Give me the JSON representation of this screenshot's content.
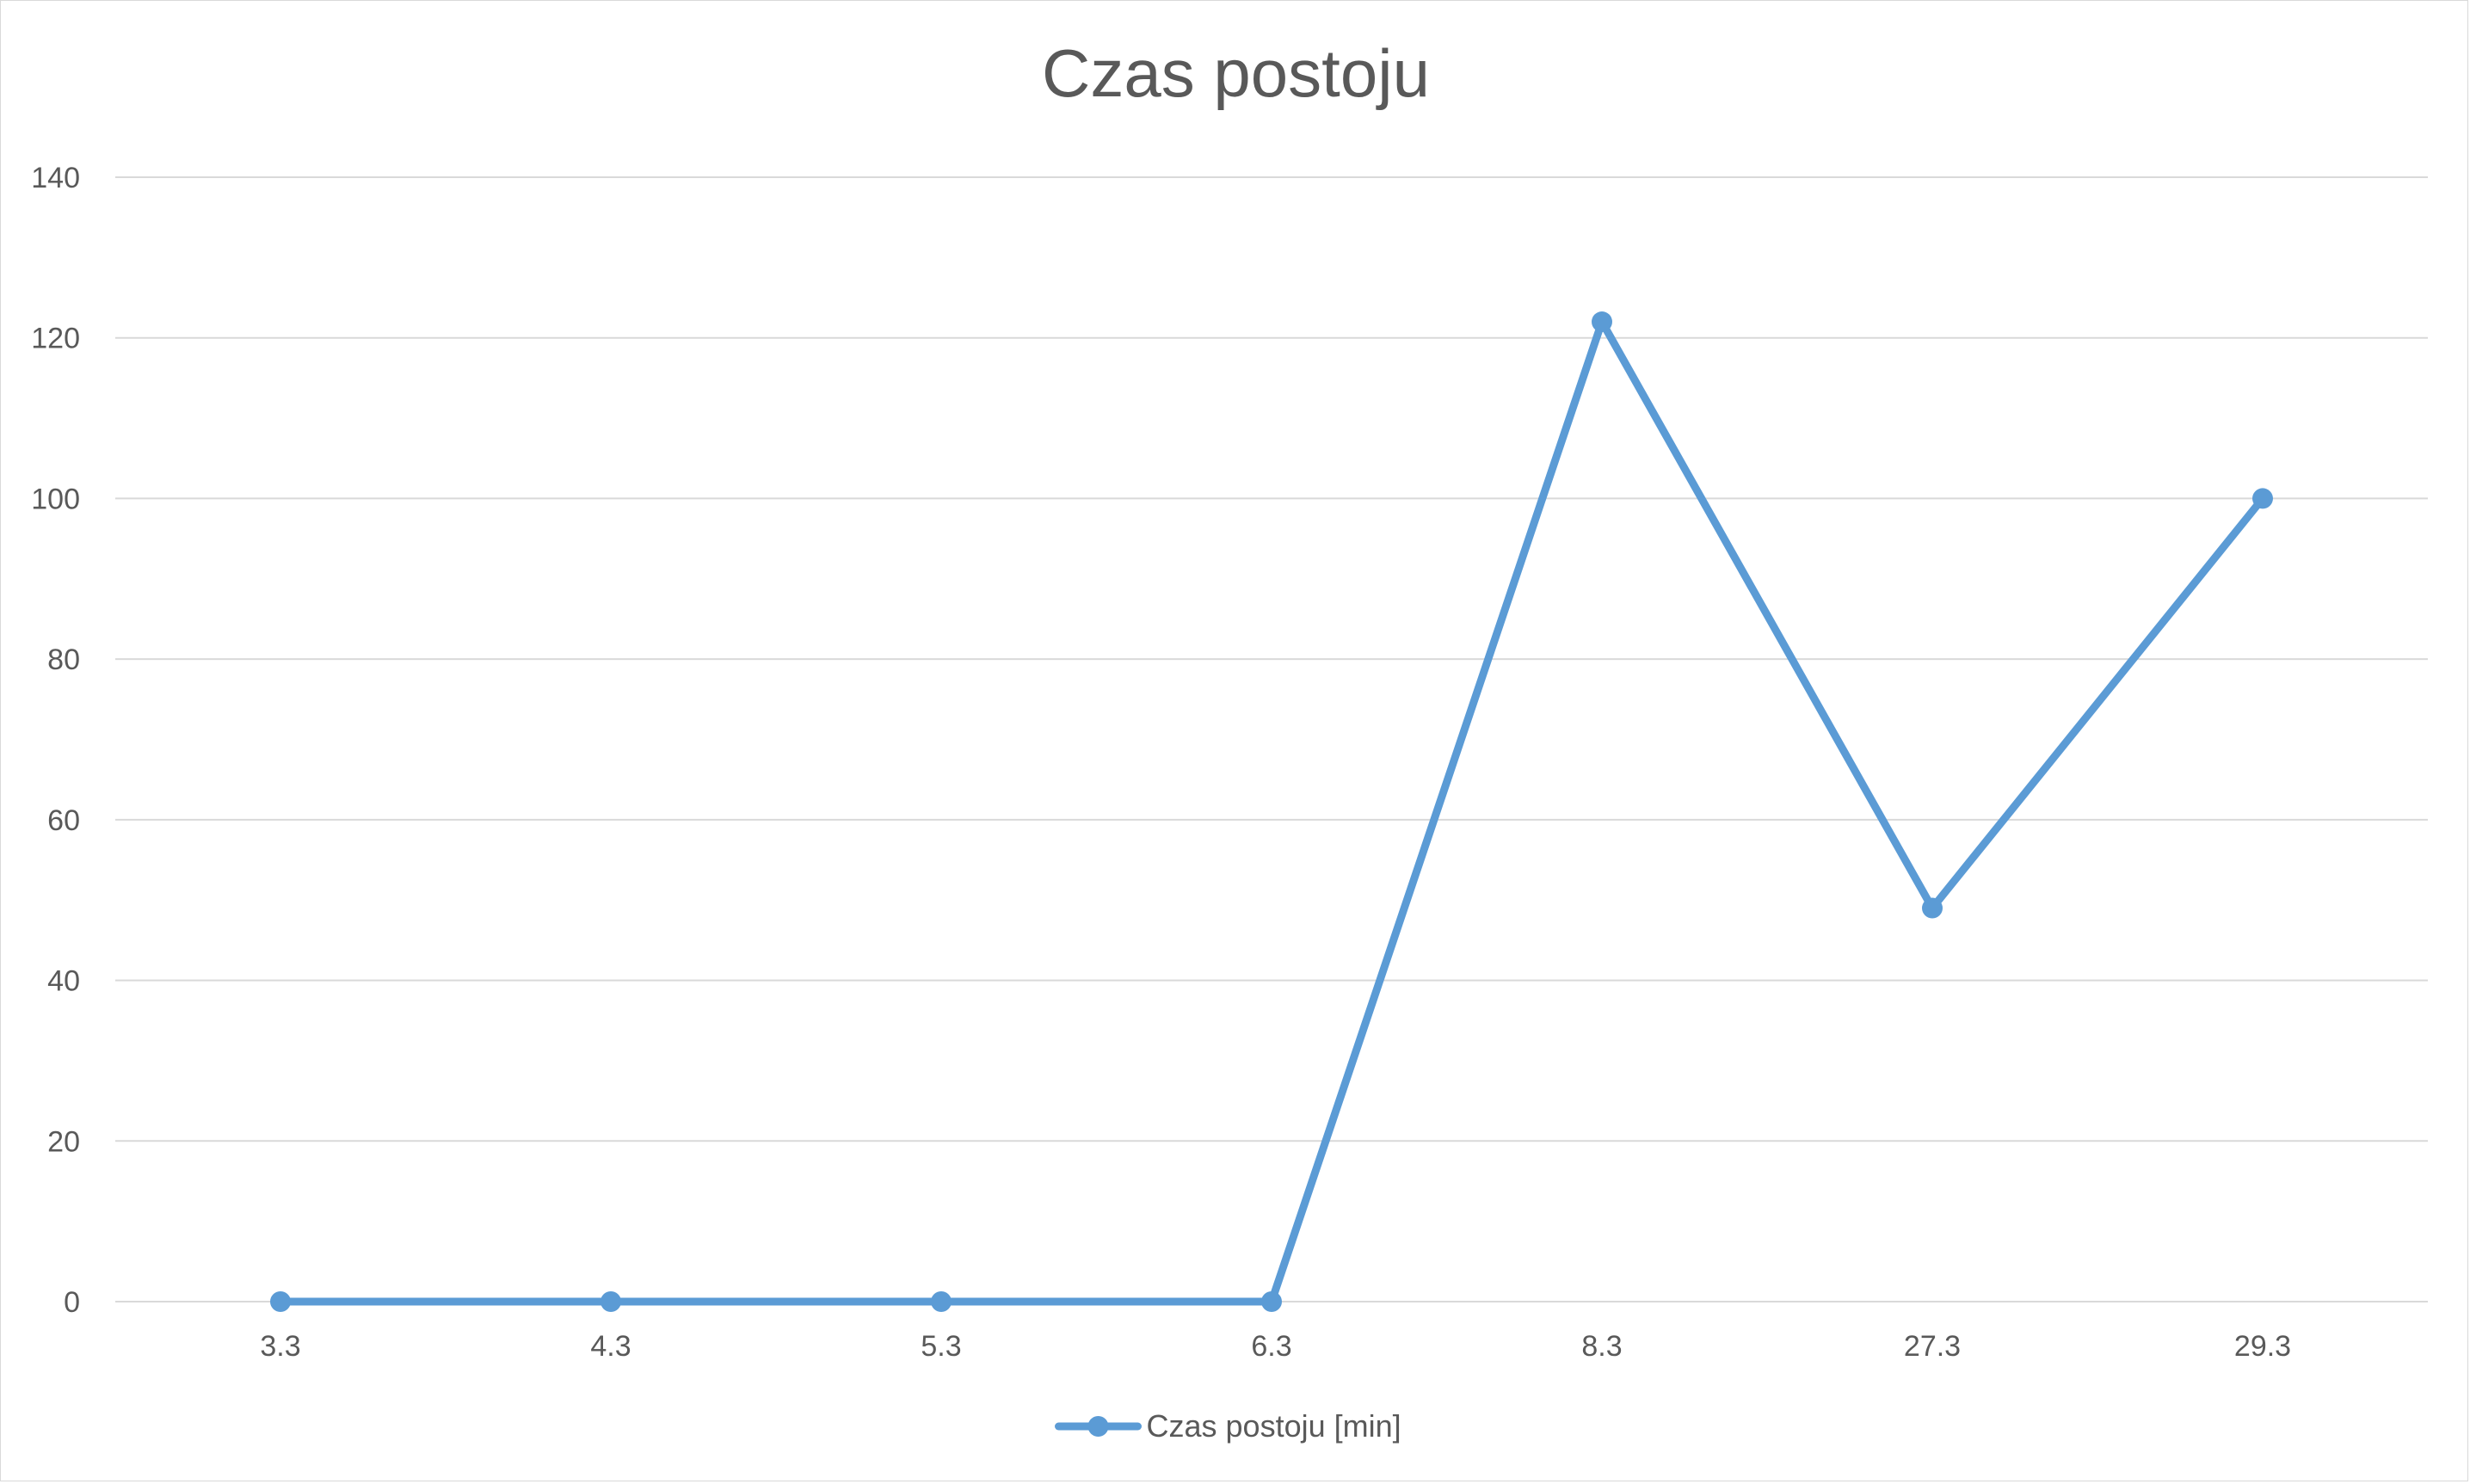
{
  "chart_data": {
    "type": "line",
    "title": "Czas postoju",
    "categories": [
      "3.3",
      "4.3",
      "5.3",
      "6.3",
      "8.3",
      "27.3",
      "29.3"
    ],
    "series": [
      {
        "name": "Czas postoju [min]",
        "values": [
          0,
          0,
          0,
          0,
          122,
          49,
          100
        ],
        "color": "#5b9bd5"
      }
    ],
    "xlabel": "",
    "ylabel": "",
    "ylim": [
      0,
      140
    ],
    "yticks": [
      "0",
      "20",
      "40",
      "60",
      "80",
      "100",
      "120",
      "140"
    ],
    "grid": true,
    "legend_position": "bottom",
    "colors": {
      "gridline": "#d9d9d9",
      "text": "#595959",
      "border": "#d9d9d9"
    }
  }
}
